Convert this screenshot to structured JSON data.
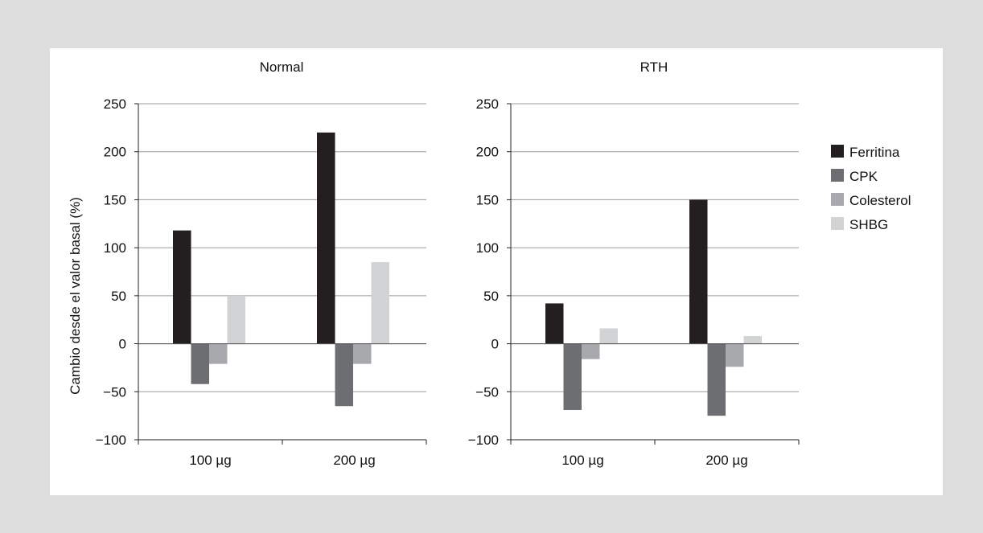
{
  "chart_data": [
    {
      "type": "bar",
      "title": "Normal",
      "categories": [
        "100 µg",
        "200 µg"
      ],
      "ylabel": "Cambio desde el valor basal (%)",
      "ylim": [
        -100,
        250
      ],
      "yticks": [
        "250",
        "200",
        "150",
        "100",
        "50",
        "0",
        "−50",
        "−100"
      ],
      "grid": true,
      "series": [
        {
          "name": "Ferritina",
          "color": "#231f20",
          "values": [
            118,
            220
          ]
        },
        {
          "name": "CPK",
          "color": "#6d6e71",
          "values": [
            -42,
            -65
          ]
        },
        {
          "name": "Colesterol",
          "color": "#a7a9ac",
          "values": [
            -21,
            -21
          ]
        },
        {
          "name": "SHBG",
          "color": "#d1d3d4",
          "values": [
            50,
            85
          ]
        }
      ]
    },
    {
      "type": "bar",
      "title": "RTH",
      "categories": [
        "100 µg",
        "200 µg"
      ],
      "ylabel": "",
      "ylim": [
        -100,
        250
      ],
      "yticks": [
        "250",
        "200",
        "150",
        "100",
        "50",
        "0",
        "−50",
        "−100"
      ],
      "grid": true,
      "series": [
        {
          "name": "Ferritina",
          "color": "#231f20",
          "values": [
            42,
            150
          ]
        },
        {
          "name": "CPK",
          "color": "#6d6e71",
          "values": [
            -69,
            -75
          ]
        },
        {
          "name": "Colesterol",
          "color": "#a7a9ac",
          "values": [
            -16,
            -24
          ]
        },
        {
          "name": "SHBG",
          "color": "#d1d3d4",
          "values": [
            16,
            8
          ]
        }
      ]
    }
  ],
  "legend": {
    "placement": "right",
    "items": [
      "Ferritina",
      "CPK",
      "Colesterol",
      "SHBG"
    ]
  }
}
